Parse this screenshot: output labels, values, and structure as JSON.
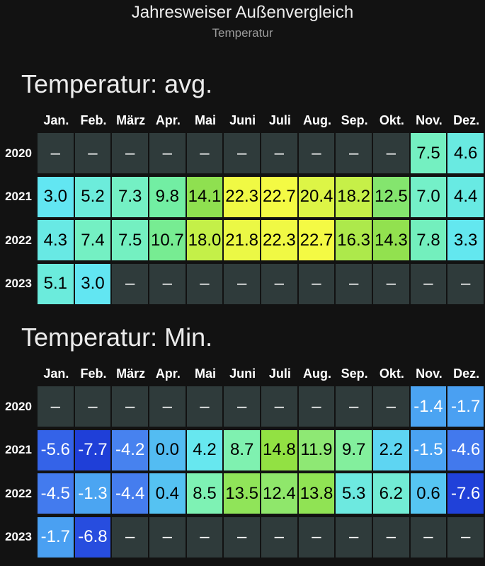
{
  "header": {
    "title": "Jahresweiser Außenvergleich",
    "subtitle": "Temperatur"
  },
  "tables": [
    {
      "title": "Temperatur: avg.",
      "columns": [
        "Jan.",
        "Feb.",
        "März",
        "Apr.",
        "Mai",
        "Juni",
        "Juli",
        "Aug.",
        "Sep.",
        "Okt.",
        "Nov.",
        "Dez."
      ],
      "rows": [
        {
          "label": "2020",
          "cells": [
            "–",
            "–",
            "–",
            "–",
            "–",
            "–",
            "–",
            "–",
            "–",
            "–",
            "7.5",
            "4.6"
          ]
        },
        {
          "label": "2021",
          "cells": [
            "3.0",
            "5.2",
            "7.3",
            "9.8",
            "14.1",
            "22.3",
            "22.7",
            "20.4",
            "18.2",
            "12.5",
            "7.0",
            "4.4"
          ]
        },
        {
          "label": "2022",
          "cells": [
            "4.3",
            "7.4",
            "7.5",
            "10.7",
            "18.0",
            "21.8",
            "22.3",
            "22.7",
            "16.3",
            "14.3",
            "7.8",
            "3.3"
          ]
        },
        {
          "label": "2023",
          "cells": [
            "5.1",
            "3.0",
            "–",
            "–",
            "–",
            "–",
            "–",
            "–",
            "–",
            "–",
            "–",
            "–"
          ]
        }
      ]
    },
    {
      "title": "Temperatur: Min.",
      "columns": [
        "Jan.",
        "Feb.",
        "März",
        "Apr.",
        "Mai",
        "Juni",
        "Juli",
        "Aug.",
        "Sep.",
        "Okt.",
        "Nov.",
        "Dez."
      ],
      "rows": [
        {
          "label": "2020",
          "cells": [
            "–",
            "–",
            "–",
            "–",
            "–",
            "–",
            "–",
            "–",
            "–",
            "–",
            "-1.4",
            "-1.7"
          ]
        },
        {
          "label": "2021",
          "cells": [
            "-5.6",
            "-7.7",
            "-4.2",
            "0.0",
            "4.2",
            "8.7",
            "14.8",
            "11.9",
            "9.7",
            "2.2",
            "-1.5",
            "-4.6"
          ]
        },
        {
          "label": "2022",
          "cells": [
            "-4.5",
            "-1.3",
            "-4.4",
            "0.4",
            "8.5",
            "13.5",
            "12.4",
            "13.8",
            "5.3",
            "6.2",
            "0.6",
            "-7.6"
          ]
        },
        {
          "label": "2023",
          "cells": [
            "-1.7",
            "-6.8",
            "–",
            "–",
            "–",
            "–",
            "–",
            "–",
            "–",
            "–",
            "–",
            "–"
          ]
        }
      ]
    }
  ]
}
